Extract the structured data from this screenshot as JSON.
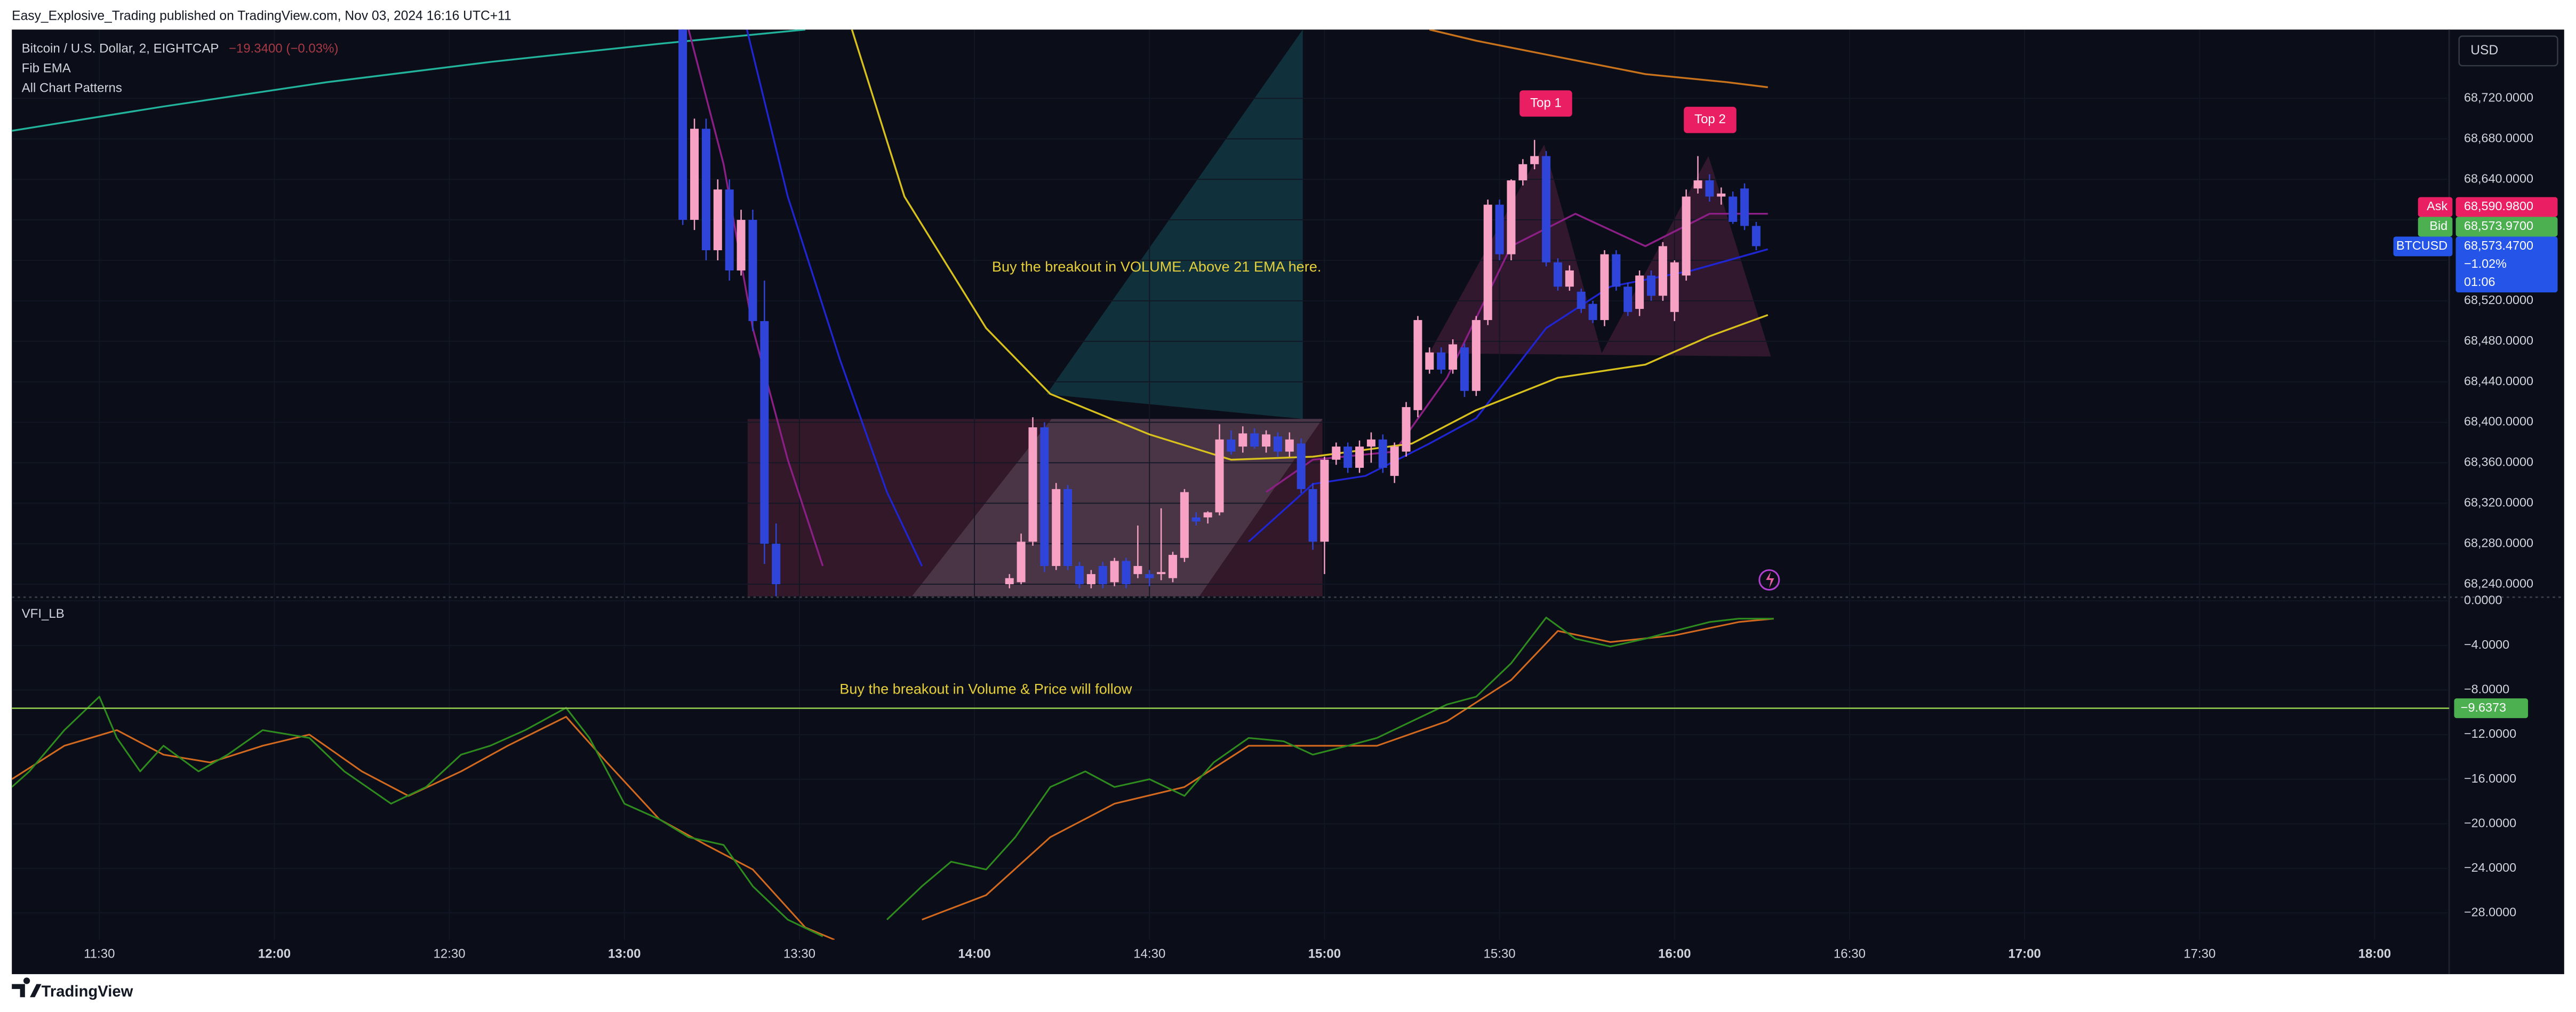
{
  "header": {
    "published": "Easy_Explosive_Trading published on TradingView.com, Nov 03, 2024 16:16 UTC+11"
  },
  "chart_data": [
    {
      "type": "candlestick",
      "symbol": "Bitcoin / U.S. Dollar, 2, EIGHTCAP",
      "change": "−19.3400 (−0.03%)",
      "indicators": [
        "Fib EMA",
        "All Chart Patterns"
      ],
      "currency": "USD",
      "up_color": "#f7a1c4",
      "down_color": "#2f44d8",
      "x": [
        790,
        792,
        794,
        796,
        798,
        800,
        802,
        804,
        806,
        846,
        848,
        850,
        852,
        854,
        856,
        858,
        860,
        862,
        864,
        866,
        868,
        870,
        872,
        874,
        876,
        878,
        880,
        882,
        884,
        886,
        888,
        890,
        892,
        894,
        896,
        898,
        900,
        902,
        904,
        906,
        908,
        910,
        912,
        914,
        916,
        918,
        920,
        922,
        924,
        926,
        928,
        930,
        932,
        934,
        936,
        938,
        940,
        942,
        944,
        946,
        948,
        950,
        952,
        954,
        956,
        958,
        960,
        962,
        964,
        966,
        968,
        970,
        972,
        974
      ],
      "open": [
        68790,
        68600,
        68690,
        68570,
        68630,
        68550,
        68600,
        68500,
        68280,
        68240,
        68242,
        68282,
        68395,
        68258,
        68334,
        68258,
        68240,
        68258,
        68242,
        68263,
        68250,
        68250,
        68250,
        68246,
        68266,
        68306,
        68306,
        68311,
        68383,
        68376,
        68389,
        68376,
        68386,
        68371,
        68379,
        68334,
        68282,
        68363,
        68376,
        68355,
        68376,
        68383,
        68347,
        68371,
        68412,
        68452,
        68469,
        68452,
        68474,
        68431,
        68501,
        68615,
        68566,
        68639,
        68655,
        68663,
        68558,
        68534,
        68529,
        68517,
        68501,
        68566,
        68534,
        68512,
        68545,
        68525,
        68509,
        68545,
        68631,
        68639,
        68623,
        68623,
        68631,
        68594
      ],
      "high": [
        68800,
        68700,
        68700,
        68640,
        68640,
        68610,
        68610,
        68540,
        68300,
        68250,
        68290,
        68405,
        68400,
        68340,
        68338,
        68262,
        68254,
        68262,
        68266,
        68266,
        68298,
        68254,
        68315,
        68272,
        68334,
        68311,
        68312,
        68398,
        68392,
        68396,
        68394,
        68392,
        68390,
        68390,
        68384,
        68340,
        68366,
        68380,
        68380,
        68382,
        68390,
        68388,
        68380,
        68420,
        68505,
        68474,
        68474,
        68482,
        68478,
        68505,
        68620,
        68620,
        68640,
        68660,
        68679,
        68668,
        68562,
        68555,
        68532,
        68520,
        68570,
        68570,
        68538,
        68550,
        68550,
        68578,
        68560,
        68630,
        68663,
        68645,
        68632,
        68628,
        68636,
        68598
      ],
      "low": [
        68595,
        68590,
        68560,
        68560,
        68540,
        68545,
        68490,
        68260,
        68200,
        68236,
        68240,
        68278,
        68252,
        68254,
        68254,
        68236,
        68236,
        68236,
        68238,
        68236,
        68246,
        68238,
        68244,
        68242,
        68262,
        68298,
        68300,
        68308,
        68368,
        68370,
        68374,
        68370,
        68366,
        68366,
        68330,
        68274,
        68250,
        68358,
        68350,
        68350,
        68360,
        68350,
        68340,
        68366,
        68405,
        68448,
        68448,
        68448,
        68425,
        68426,
        68496,
        68560,
        68560,
        68634,
        68650,
        68554,
        68530,
        68530,
        68508,
        68498,
        68495,
        68530,
        68505,
        68505,
        68520,
        68520,
        68500,
        68540,
        68626,
        68618,
        68615,
        68596,
        68590,
        68570
      ],
      "close": [
        68600,
        68690,
        68570,
        68630,
        68550,
        68600,
        68500,
        68280,
        68240,
        68246,
        68282,
        68395,
        68258,
        68334,
        68258,
        68240,
        68250,
        68240,
        68263,
        68240,
        68258,
        68246,
        68252,
        68269,
        68331,
        68302,
        68311,
        68383,
        68371,
        68389,
        68376,
        68388,
        68371,
        68383,
        68334,
        68282,
        68363,
        68376,
        68355,
        68376,
        68383,
        68355,
        68376,
        68415,
        68501,
        68469,
        68452,
        68477,
        68431,
        68501,
        68615,
        68566,
        68639,
        68655,
        68663,
        68558,
        68534,
        68550,
        68512,
        68501,
        68566,
        68534,
        68509,
        68545,
        68525,
        68574,
        68558,
        68623,
        68639,
        68623,
        68626,
        68598,
        68594,
        68574
      ],
      "lines": [
        {
          "color": "#22b39c",
          "x": [
            675,
            701,
            729,
            757,
            786,
            811
          ],
          "values": [
            68688,
            68712,
            68736,
            68756,
            68774,
            68788
          ]
        },
        {
          "color": "#8c1f86",
          "x": [
            791,
            797,
            802,
            808,
            814,
            850,
            890,
            898,
            912,
            921,
            932,
            943,
            955,
            966,
            976
          ],
          "values": [
            68788,
            68655,
            68493,
            68363,
            68258,
            null,
            68331,
            68363,
            68371,
            68444,
            68574,
            68606,
            68574,
            68606,
            68606
          ]
        },
        {
          "color": "#1f25d0",
          "x": [
            801,
            808,
            817,
            825,
            831,
            850,
            887,
            898,
            907,
            918,
            926,
            938,
            949,
            963,
            976
          ],
          "values": [
            68788,
            68623,
            68461,
            68331,
            68258,
            null,
            68282,
            68339,
            68347,
            68379,
            68404,
            68493,
            68534,
            68550,
            68571
          ]
        },
        {
          "color": "#d8c11c",
          "x": [
            819,
            828,
            842,
            853,
            870,
            884,
            898,
            915,
            926,
            940,
            955,
            966,
            976
          ],
          "values": [
            68788,
            68623,
            68493,
            68428,
            68388,
            68363,
            68366,
            68379,
            68412,
            68444,
            68457,
            68485,
            68506
          ]
        },
        {
          "color": "#c9721c",
          "x": [
            918,
            926,
            940,
            955,
            969,
            976
          ],
          "values": [
            68788,
            68777,
            68761,
            68744,
            68736,
            68731
          ]
        }
      ],
      "annotations": [
        "Buy the breakout in VOLUME. Above 21 EMA here.",
        "Top 1",
        "Top 2"
      ],
      "price_tags": [
        {
          "label": "Ask",
          "value": 68590.98,
          "value_label": "68,590.9800",
          "color": "#e91e63"
        },
        {
          "label": "Bid",
          "value": 68573.97,
          "value_label": "68,573.9700",
          "color": "#4caf50"
        },
        {
          "label": "BTCUSD",
          "value": 68573.47,
          "value_label": "68,573.4700",
          "details": [
            "−1.02%",
            "01:06"
          ],
          "color": "#2454e8"
        }
      ],
      "xlim": [
        675,
        1092.5
      ],
      "ylim": [
        68228,
        68788
      ],
      "grid": true,
      "yticks": [
        {
          "value": 68240,
          "label": "68,240.0000"
        },
        {
          "value": 68280,
          "label": "68,280.0000"
        },
        {
          "value": 68320,
          "label": "68,320.0000"
        },
        {
          "value": 68360,
          "label": "68,360.0000"
        },
        {
          "value": 68400,
          "label": "68,400.0000"
        },
        {
          "value": 68440,
          "label": "68,440.0000"
        },
        {
          "value": 68480,
          "label": "68,480.0000"
        },
        {
          "value": 68520,
          "label": "68,520.0000"
        },
        {
          "value": 68560,
          "label": "68,560.0000"
        },
        {
          "value": 68600,
          "label": "68,600.0000"
        },
        {
          "value": 68640,
          "label": "68,640.0000"
        },
        {
          "value": 68680,
          "label": "68,680.0000"
        },
        {
          "value": 68720,
          "label": "68,720.0000"
        }
      ]
    },
    {
      "type": "line",
      "title": "VFI_LB",
      "series": [
        {
          "color": "#2e8b1e",
          "x": [
            675,
            678,
            684,
            690,
            693,
            697,
            701,
            707,
            712,
            718,
            726,
            732,
            740,
            746,
            752,
            757,
            763,
            770,
            774,
            780,
            786,
            791,
            797,
            802,
            808,
            814,
            820,
            825,
            831,
            836,
            842,
            847,
            853,
            859,
            864,
            870,
            876,
            881,
            887,
            893,
            898,
            904,
            909,
            915,
            921,
            926,
            932,
            938,
            943,
            949,
            955,
            960,
            966,
            971,
            977
          ],
          "values": [
            -16.7,
            -15.3,
            -11.6,
            -8.6,
            -12.3,
            -15.3,
            -13.0,
            -15.3,
            -13.8,
            -11.6,
            -12.3,
            -15.3,
            -18.2,
            -16.7,
            -13.8,
            -13.0,
            -11.6,
            -9.6,
            -12.3,
            -18.2,
            -19.6,
            -21.2,
            -21.9,
            -25.6,
            -28.6,
            -30.1,
            null,
            -28.6,
            -25.6,
            -23.4,
            -24.1,
            -21.2,
            -16.7,
            -15.3,
            -16.7,
            -16.0,
            -17.5,
            -14.5,
            -12.3,
            -12.6,
            -13.8,
            -13.0,
            -12.3,
            -10.8,
            -9.3,
            -8.6,
            -5.6,
            -1.5,
            -3.4,
            -4.1,
            -3.4,
            -2.7,
            -1.9,
            -1.6,
            -1.6
          ]
        },
        {
          "color": "#d2691e",
          "x": [
            675,
            684,
            693,
            701,
            709,
            718,
            726,
            735,
            743,
            752,
            760,
            770,
            777,
            786,
            794,
            802,
            811,
            816,
            820,
            831,
            842,
            853,
            864,
            876,
            887,
            898,
            909,
            921,
            932,
            940,
            949,
            960,
            971,
            977
          ],
          "values": [
            -16.0,
            -13.0,
            -11.6,
            -13.8,
            -14.5,
            -13.0,
            -12.0,
            -15.3,
            -17.5,
            -15.3,
            -13.0,
            -10.4,
            -14.5,
            -19.6,
            -21.9,
            -24.1,
            -29.3,
            -30.4,
            null,
            -28.6,
            -26.4,
            -21.2,
            -18.2,
            -16.7,
            -13.0,
            -13.0,
            -13.0,
            -10.8,
            -7.1,
            -2.7,
            -3.7,
            -3.1,
            -1.9,
            -1.6
          ]
        }
      ],
      "hline": {
        "value": -9.6373,
        "value_label": "−9.6373",
        "color": "#8bc34a"
      },
      "annotations": [
        "Buy the breakout in Volume & Price will follow"
      ],
      "xlim": [
        675,
        1092.5
      ],
      "ylim": [
        -30.4,
        0.4
      ],
      "grid": true,
      "yticks": [
        {
          "value": 0,
          "label": "0.0000"
        },
        {
          "value": -4,
          "label": "−4.0000"
        },
        {
          "value": -8,
          "label": "−8.0000"
        },
        {
          "value": -12,
          "label": "−12.0000"
        },
        {
          "value": -16,
          "label": "−16.0000"
        },
        {
          "value": -20,
          "label": "−20.0000"
        },
        {
          "value": -24,
          "label": "−24.0000"
        },
        {
          "value": -28,
          "label": "−28.0000"
        }
      ],
      "xticks": [
        {
          "value": 690,
          "label": "11:30"
        },
        {
          "value": 720,
          "label": "12:00"
        },
        {
          "value": 750,
          "label": "12:30"
        },
        {
          "value": 780,
          "label": "13:00"
        },
        {
          "value": 810,
          "label": "13:30"
        },
        {
          "value": 840,
          "label": "14:00"
        },
        {
          "value": 870,
          "label": "14:30"
        },
        {
          "value": 900,
          "label": "15:00"
        },
        {
          "value": 930,
          "label": "15:30"
        },
        {
          "value": 960,
          "label": "16:00"
        },
        {
          "value": 990,
          "label": "16:30"
        },
        {
          "value": 1020,
          "label": "17:00"
        },
        {
          "value": 1050,
          "label": "17:30"
        },
        {
          "value": 1080,
          "label": "18:00"
        }
      ]
    }
  ],
  "footer": {
    "brand": "TradingView"
  }
}
